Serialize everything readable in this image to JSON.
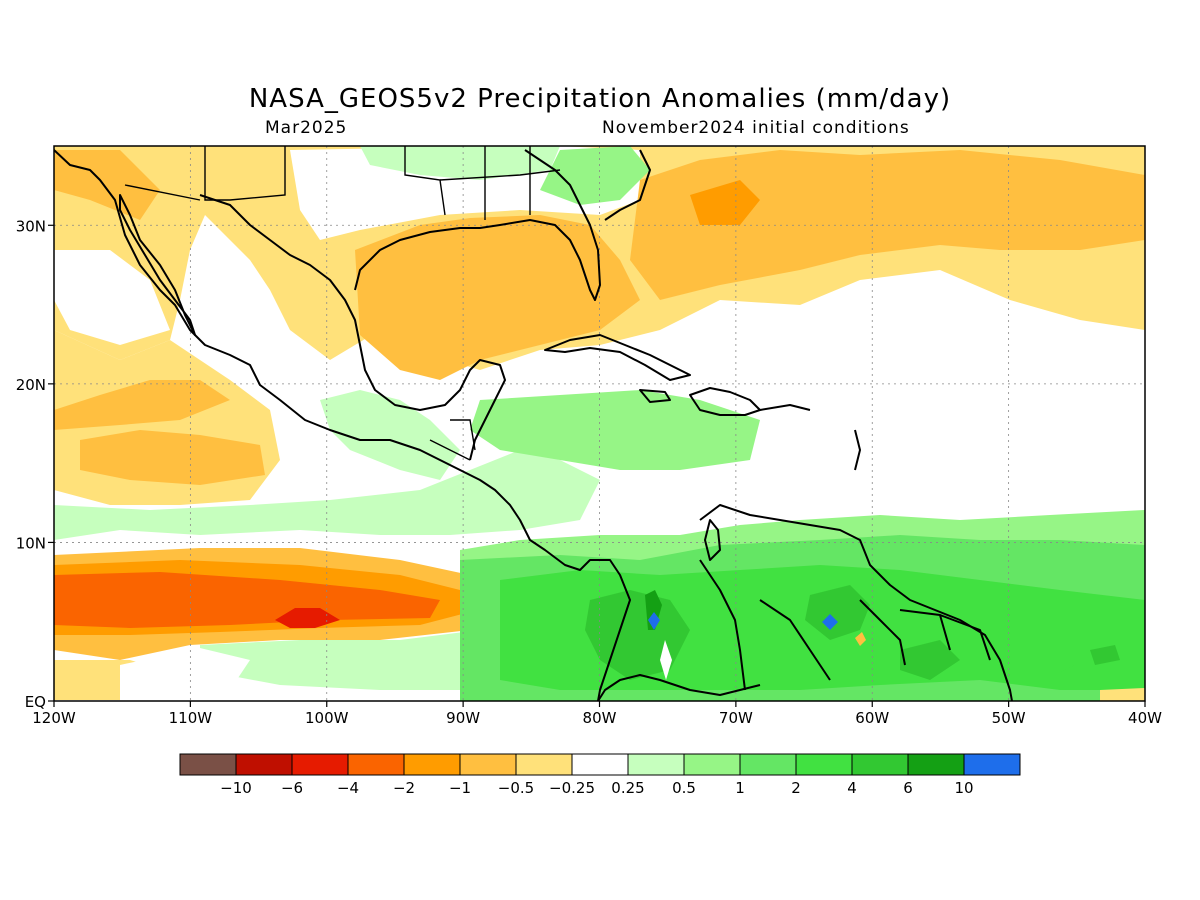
{
  "title": "NASA_GEOS5v2 Precipitation Anomalies (mm/day)",
  "subtitle_left": "Mar2025",
  "subtitle_right": "November2024 initial conditions",
  "map": {
    "region": "Caribbean and tropical Eastern Pacific",
    "lon_range": [
      -120,
      -40
    ],
    "lat_range": [
      0,
      35
    ],
    "lon_ticks": [
      {
        "value": -120,
        "label": "120W"
      },
      {
        "value": -110,
        "label": "110W"
      },
      {
        "value": -100,
        "label": "100W"
      },
      {
        "value": -90,
        "label": "90W"
      },
      {
        "value": -80,
        "label": "80W"
      },
      {
        "value": -70,
        "label": "70W"
      },
      {
        "value": -60,
        "label": "60W"
      },
      {
        "value": -50,
        "label": "50W"
      },
      {
        "value": -40,
        "label": "40W"
      }
    ],
    "lat_ticks": [
      {
        "value": 0,
        "label": "EQ"
      },
      {
        "value": 10,
        "label": "10N"
      },
      {
        "value": 20,
        "label": "20N"
      },
      {
        "value": 30,
        "label": "30N"
      }
    ],
    "grid": true
  },
  "colorbar": {
    "colors": [
      "#7a5046",
      "#bf0f00",
      "#e61b00",
      "#fa6400",
      "#ff9c00",
      "#ffbf40",
      "#ffe17a",
      "#ffffff",
      "#c6ffbe",
      "#96f586",
      "#64e664",
      "#41e141",
      "#32c832",
      "#14a014",
      "#1e6eeb"
    ],
    "labels": [
      "−10",
      "−6",
      "−4",
      "−2",
      "−1",
      "−0.5",
      "−0.25",
      "0.25",
      "0.5",
      "1",
      "2",
      "4",
      "6",
      "10"
    ]
  }
}
